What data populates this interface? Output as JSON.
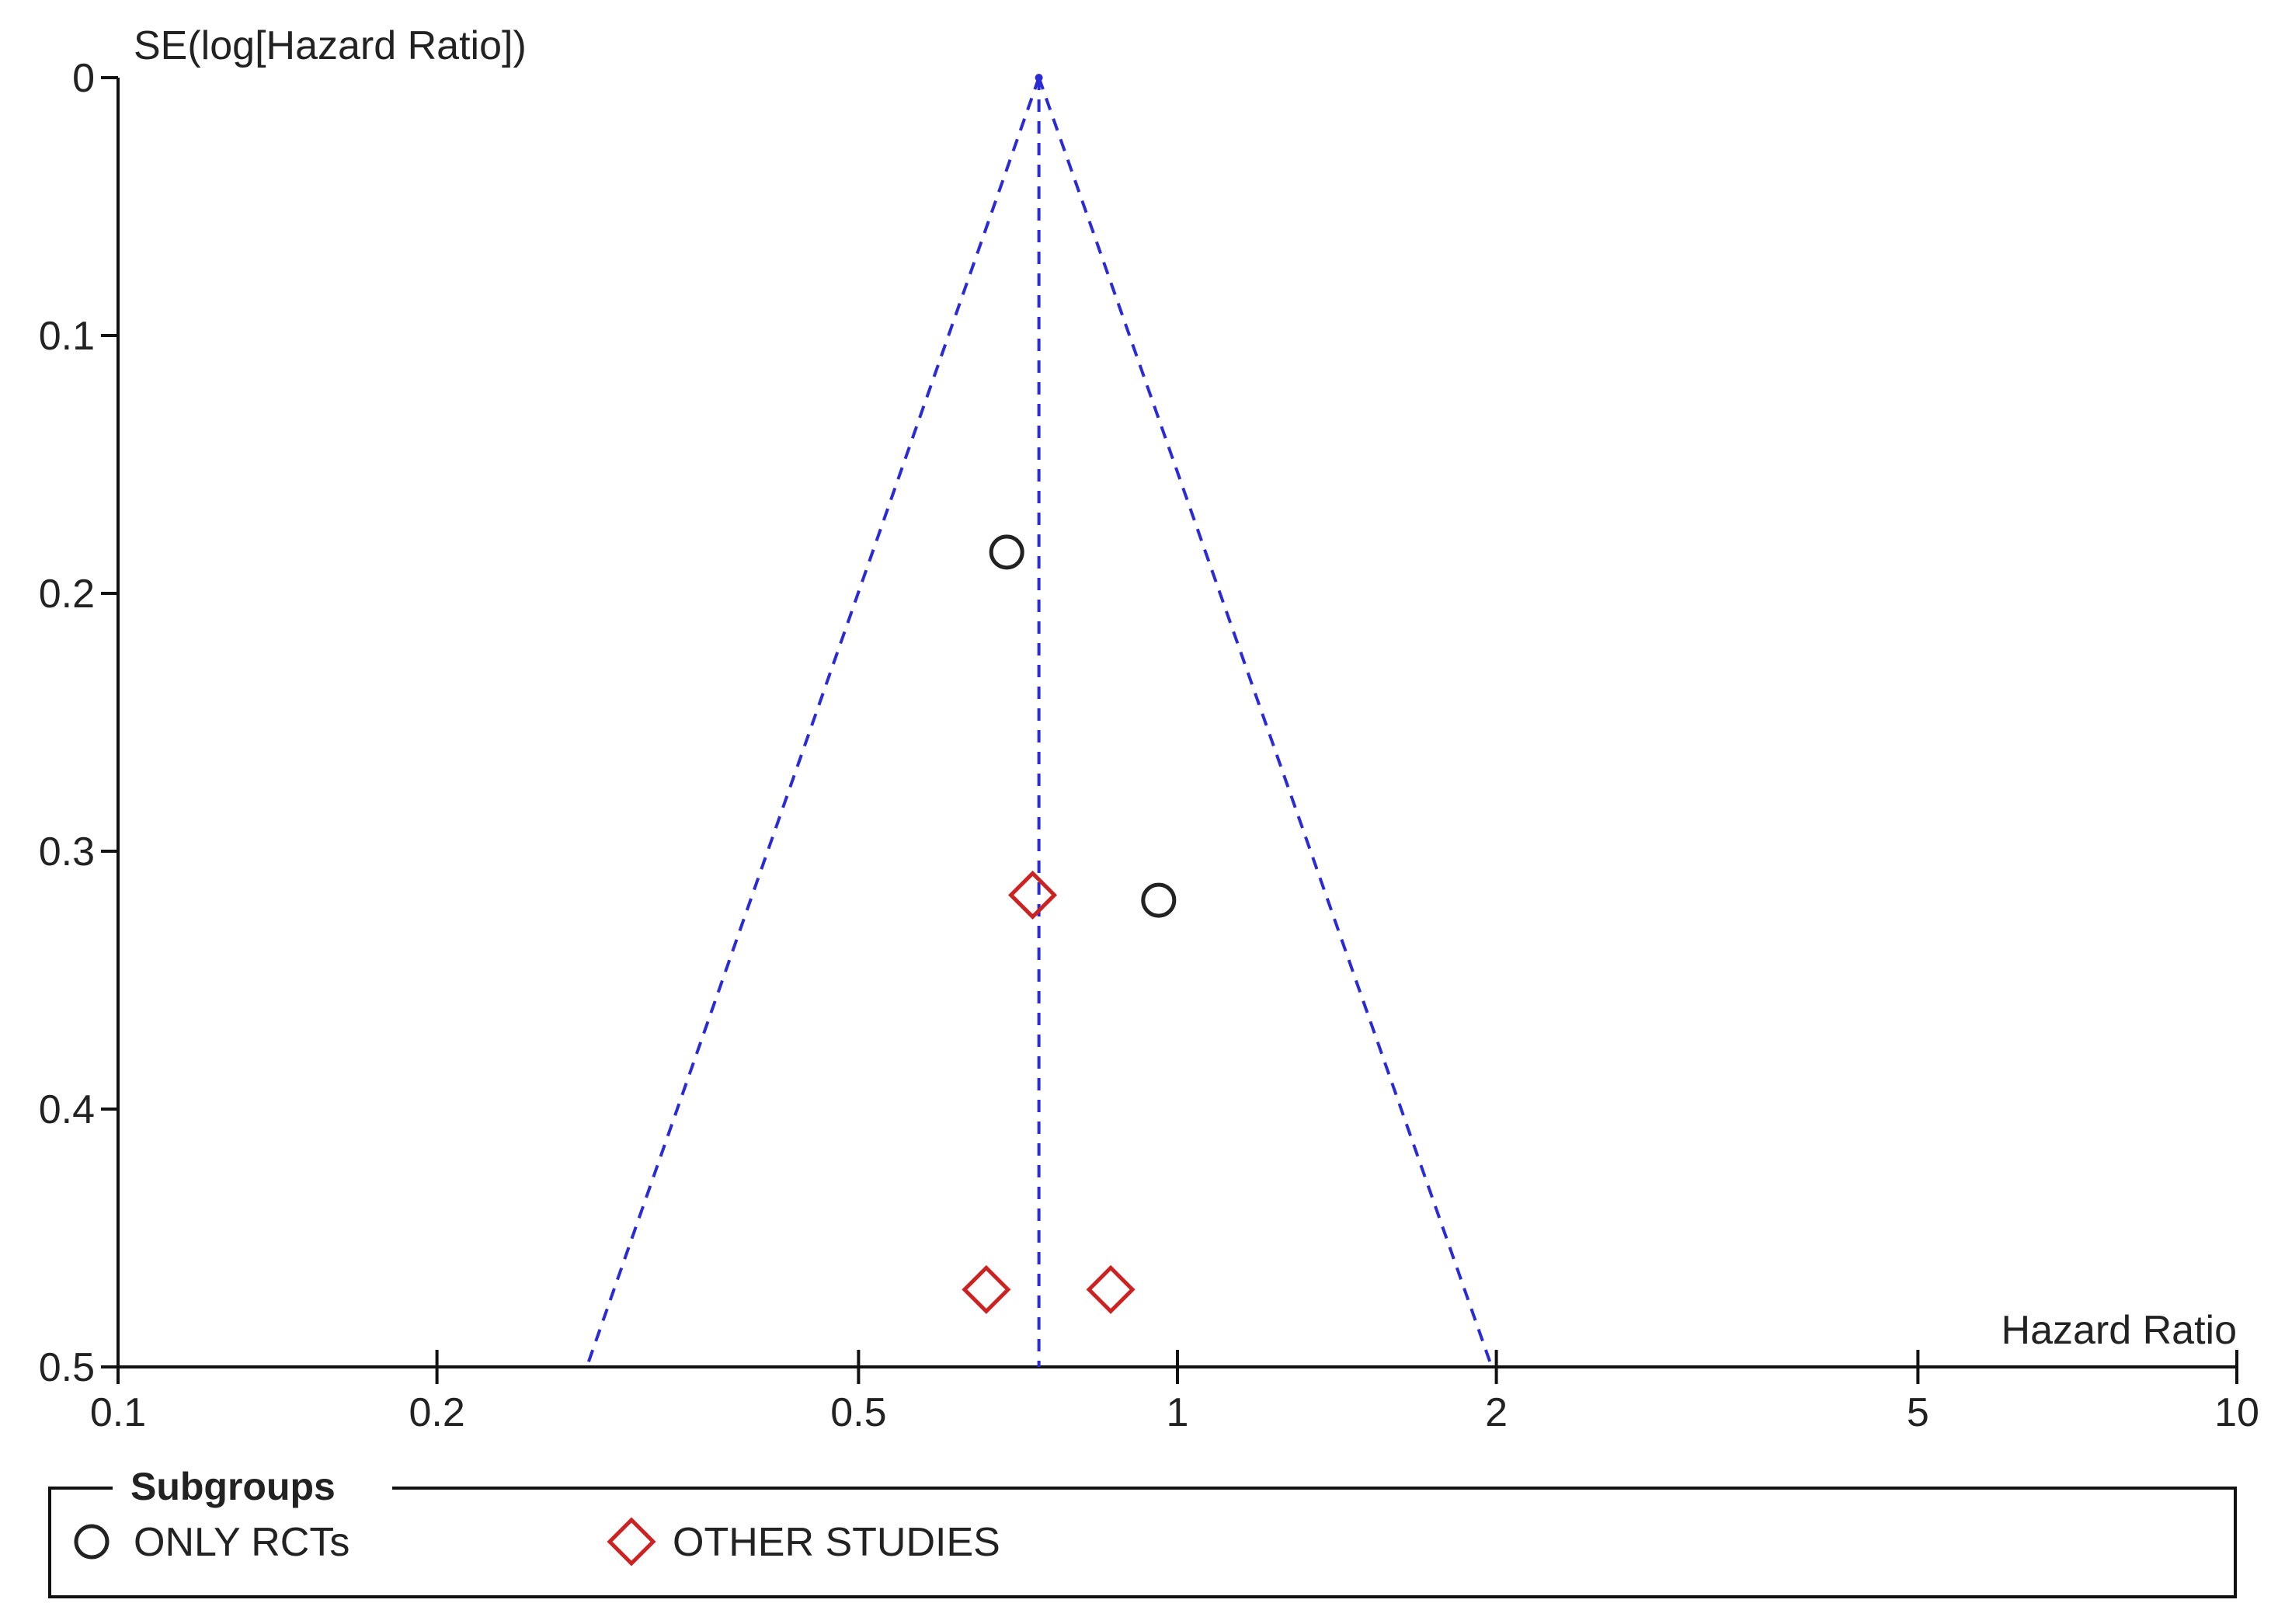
{
  "chart_data": {
    "type": "scatter",
    "subtype": "funnel-plot",
    "ylabel": "SE(log[Hazard Ratio])",
    "xlabel": "Hazard Ratio",
    "x_scale": "log",
    "xlim": [
      0.1,
      10
    ],
    "ylim": [
      0,
      0.5
    ],
    "y_inverted": true,
    "x_ticks": [
      "0.1",
      "0.2",
      "0.5",
      "1",
      "2",
      "5",
      "10"
    ],
    "y_ticks": [
      "0",
      "0.1",
      "0.2",
      "0.3",
      "0.4",
      "0.5"
    ],
    "pooled_estimate": 0.74,
    "funnel": {
      "apex": {
        "x": 0.74,
        "y": 0
      },
      "base_left": {
        "x": 0.277,
        "y": 0.5
      },
      "base_right": {
        "x": 1.98,
        "y": 0.5
      },
      "color": "#2b2bd6",
      "style": "dashed"
    },
    "legend": {
      "title": "Subgroups",
      "placement": "bottom"
    },
    "series": [
      {
        "name": "ONLY RCTs",
        "marker": "circle",
        "color": "#222222",
        "points": [
          {
            "x": 0.69,
            "y": 0.184
          },
          {
            "x": 0.96,
            "y": 0.319
          }
        ]
      },
      {
        "name": "OTHER STUDIES",
        "marker": "diamond",
        "color": "#cc2222",
        "points": [
          {
            "x": 0.73,
            "y": 0.317
          },
          {
            "x": 0.66,
            "y": 0.47
          },
          {
            "x": 0.865,
            "y": 0.47
          }
        ]
      }
    ]
  }
}
